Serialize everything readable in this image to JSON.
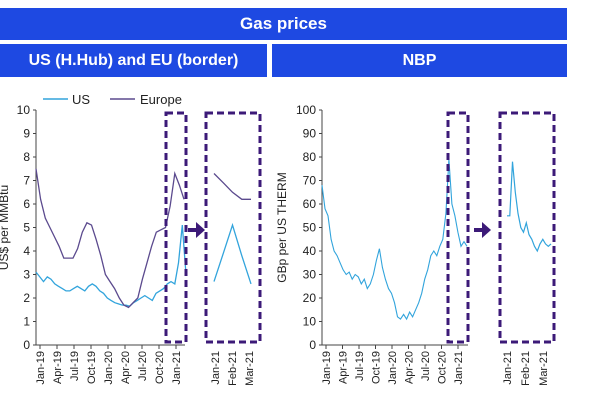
{
  "title": "Gas prices",
  "colors": {
    "banner": "#1e49e2",
    "us": "#32a4dc",
    "europe": "#5b4a8e",
    "nbp": "#32a4dc",
    "highlight": "#3c1a78"
  },
  "chart_data": [
    {
      "type": "line",
      "title": "US (H.Hub) and EU (border)",
      "ylabel": "US$ per MMBtu",
      "ylim": [
        0,
        10
      ],
      "yticks": [
        "0",
        "1",
        "2",
        "3",
        "4",
        "5",
        "6",
        "7",
        "8",
        "9",
        "10"
      ],
      "x_ticks": [
        "Jan-19",
        "Apr-19",
        "Jul-19",
        "Oct-19",
        "Jan-20",
        "Apr-20",
        "Jul-20",
        "Oct-20",
        "Jan-21"
      ],
      "legend": [
        "US",
        "Europe"
      ],
      "legend_position": "top",
      "series": [
        {
          "name": "US",
          "values": [
            3.1,
            2.9,
            2.7,
            2.9,
            2.8,
            2.6,
            2.5,
            2.4,
            2.3,
            2.3,
            2.4,
            2.5,
            2.4,
            2.3,
            2.5,
            2.6,
            2.5,
            2.3,
            2.2,
            2.0,
            1.9,
            1.8,
            1.75,
            1.7,
            1.7,
            1.65,
            1.8,
            1.9,
            2.0,
            2.1,
            2.0,
            1.9,
            2.2,
            2.3,
            2.4,
            2.6,
            2.7,
            2.6,
            3.5,
            5.1,
            3.0
          ]
        },
        {
          "name": "Europe",
          "values": [
            7.5,
            6.2,
            5.4,
            5.0,
            4.6,
            4.2,
            3.7,
            3.7,
            3.7,
            4.1,
            4.8,
            5.2,
            5.1,
            4.5,
            3.8,
            3.0,
            2.7,
            2.4,
            2.0,
            1.7,
            1.6,
            1.8,
            2.0,
            2.8,
            3.5,
            4.2,
            4.8,
            4.9,
            5.0,
            5.9,
            7.3,
            6.8,
            6.2
          ]
        }
      ],
      "zoom": {
        "x_ticks": [
          "Jan-21",
          "Feb-21",
          "Mar-21"
        ],
        "series": [
          {
            "name": "US",
            "values": [
              2.7,
              3.9,
              5.1,
              3.8,
              2.6
            ]
          },
          {
            "name": "Europe",
            "values": [
              7.3,
              6.9,
              6.5,
              6.2,
              6.2
            ]
          }
        ]
      }
    },
    {
      "type": "line",
      "title": "NBP",
      "ylabel": "GBp per US THERM",
      "ylim": [
        0,
        100
      ],
      "yticks": [
        "0",
        "10",
        "20",
        "30",
        "40",
        "50",
        "60",
        "70",
        "80",
        "90",
        "100"
      ],
      "x_ticks": [
        "Jan-19",
        "Apr-19",
        "Jul-19",
        "Oct-19",
        "Jan-20",
        "Apr-20",
        "Jul-20",
        "Oct-20",
        "Jan-21"
      ],
      "series": [
        {
          "name": "NBP",
          "values": [
            68,
            58,
            55,
            45,
            40,
            38,
            35,
            32,
            30,
            31,
            28,
            30,
            29,
            26,
            28,
            24,
            26,
            30,
            36,
            41,
            33,
            28,
            24,
            22,
            18,
            12,
            11,
            13,
            11,
            14,
            12,
            15,
            18,
            22,
            28,
            32,
            38,
            40,
            38,
            42,
            45,
            56,
            79,
            60,
            55,
            48,
            42,
            44,
            42
          ]
        }
      ],
      "zoom": {
        "x_ticks": [
          "Jan-21",
          "Feb-21",
          "Mar-21"
        ],
        "series": [
          {
            "name": "NBP",
            "values": [
              55,
              55,
              78,
              65,
              56,
              50,
              48,
              52,
              47,
              45,
              42,
              40,
              43,
              45,
              43,
              42,
              43
            ]
          }
        ]
      }
    }
  ]
}
